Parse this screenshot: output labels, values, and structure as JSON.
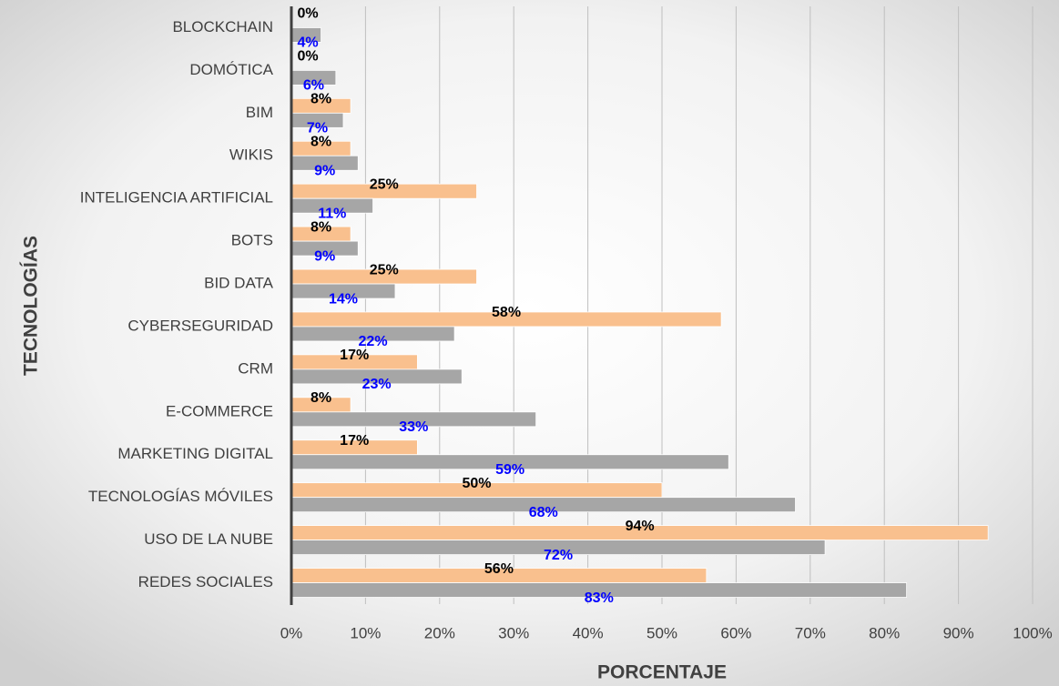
{
  "chart_data": {
    "type": "bar",
    "orientation": "horizontal",
    "xlabel": "PORCENTAJE",
    "ylabel": "TECNOLOGÍAS",
    "categories": [
      "BLOCKCHAIN",
      "DOMÓTICA",
      "BIM",
      "WIKIS",
      "INTELIGENCIA ARTIFICIAL",
      "BOTS",
      "BID DATA",
      "CYBERSEGURIDAD",
      "CRM",
      "E-COMMERCE",
      "MARKETING DIGITAL",
      "TECNOLOGÍAS MÓVILES",
      "USO DE LA NUBE",
      "REDES SOCIALES"
    ],
    "series": [
      {
        "color": "#f9c08e",
        "label_color": "#000000",
        "values": [
          0,
          0,
          8,
          8,
          25,
          8,
          25,
          58,
          17,
          8,
          17,
          50,
          94,
          56
        ],
        "value_labels": [
          "0%",
          "0%",
          "8%",
          "8%",
          "25%",
          "8%",
          "25%",
          "58%",
          "17%",
          "8%",
          "17%",
          "50%",
          "94%",
          "56%"
        ]
      },
      {
        "color": "#a6a6a6",
        "label_color": "#0000ff",
        "values": [
          4,
          6,
          7,
          9,
          11,
          9,
          14,
          22,
          23,
          33,
          59,
          68,
          72,
          83
        ],
        "value_labels": [
          "4%",
          "6%",
          "7%",
          "9%",
          "11%",
          "9%",
          "14%",
          "22%",
          "23%",
          "33%",
          "59%",
          "68%",
          "72%",
          "83%"
        ]
      }
    ],
    "xlim": [
      0,
      100
    ],
    "xticks": [
      {
        "value": 0,
        "label": "0%"
      },
      {
        "value": 10,
        "label": "10%"
      },
      {
        "value": 20,
        "label": "20%"
      },
      {
        "value": 30,
        "label": "30%"
      },
      {
        "value": 40,
        "label": "40%"
      },
      {
        "value": 50,
        "label": "50%"
      },
      {
        "value": 60,
        "label": "60%"
      },
      {
        "value": 70,
        "label": "70%"
      },
      {
        "value": 80,
        "label": "80%"
      },
      {
        "value": 90,
        "label": "90%"
      },
      {
        "value": 100,
        "label": "100%"
      }
    ],
    "grid": true
  }
}
